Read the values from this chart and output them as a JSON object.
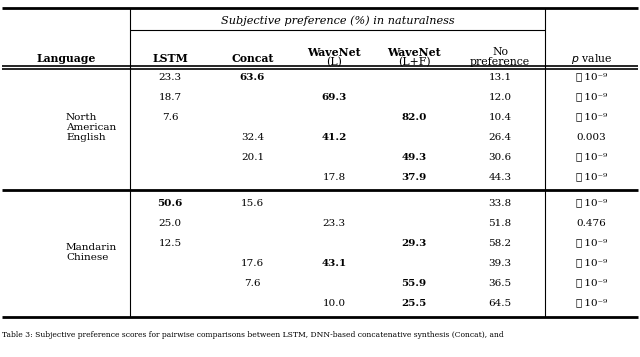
{
  "title": "Subjective preference (%) in naturalness",
  "col_headers_line1": [
    "Language",
    "LSTM",
    "Concat",
    "WaveNet",
    "WaveNet",
    "No",
    ""
  ],
  "col_headers_line2": [
    "",
    "",
    "",
    "(L)",
    "(L+F)",
    "preference",
    "p value"
  ],
  "rows_nae": [
    [
      "23.3",
      "63.6",
      "",
      "",
      "13.1",
      "≪ 10⁻⁹"
    ],
    [
      "18.7",
      "",
      "69.3",
      "",
      "12.0",
      "≪ 10⁻⁹"
    ],
    [
      "7.6",
      "",
      "",
      "82.0",
      "10.4",
      "≪ 10⁻⁹"
    ],
    [
      "",
      "32.4",
      "41.2",
      "",
      "26.4",
      "0.003"
    ],
    [
      "",
      "20.1",
      "",
      "49.3",
      "30.6",
      "≪ 10⁻⁹"
    ],
    [
      "",
      "",
      "17.8",
      "37.9",
      "44.3",
      "≪ 10⁻⁹"
    ]
  ],
  "rows_mc": [
    [
      "50.6",
      "15.6",
      "",
      "",
      "33.8",
      "≪ 10⁻⁹"
    ],
    [
      "25.0",
      "",
      "23.3",
      "",
      "51.8",
      "0.476"
    ],
    [
      "12.5",
      "",
      "",
      "29.3",
      "58.2",
      "≪ 10⁻⁹"
    ],
    [
      "",
      "17.6",
      "43.1",
      "",
      "39.3",
      "≪ 10⁻⁹"
    ],
    [
      "",
      "7.6",
      "",
      "55.9",
      "36.5",
      "≪ 10⁻⁹"
    ],
    [
      "",
      "",
      "10.0",
      "25.5",
      "64.5",
      "≪ 10⁻⁹"
    ]
  ],
  "bold_nae": [
    [
      1
    ],
    [
      2
    ],
    [
      3
    ],
    [
      2
    ],
    [
      3
    ],
    [
      3
    ]
  ],
  "bold_mc": [
    [
      0
    ],
    [],
    [
      3
    ],
    [
      2
    ],
    [
      3
    ],
    [
      3
    ]
  ],
  "lang_nae": "North\nAmerican\nEnglish",
  "lang_mc": "Mandarin\nChinese",
  "caption": "Table 3: Subjective preference scores for pairwise comparisons between LSTM, DNN-based concatenative synthesis (Concat), and"
}
